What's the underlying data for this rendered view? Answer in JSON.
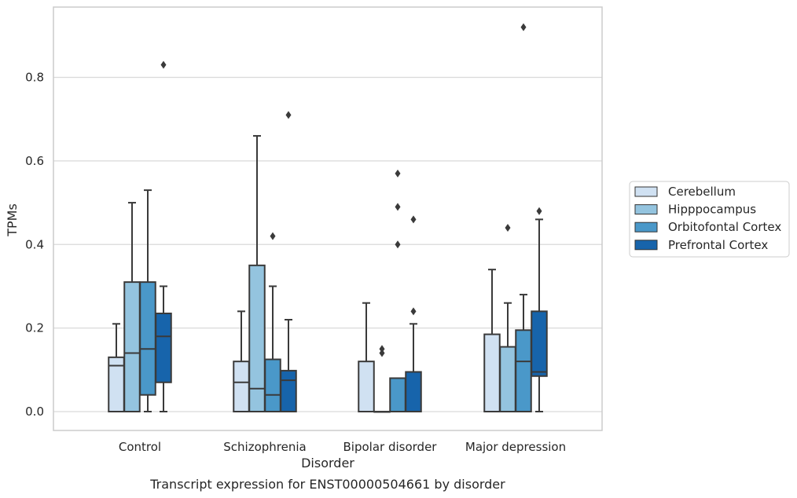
{
  "chart_data": {
    "type": "box",
    "xlabel": "Disorder",
    "ylabel": "TPMs",
    "caption": "Transcript expression for ENST00000504661 by disorder",
    "ylim": [
      -0.045,
      0.97
    ],
    "yticks": [
      "0.0",
      "0.2",
      "0.4",
      "0.6",
      "0.8"
    ],
    "grid": "horizontal",
    "legend_position": "right",
    "categories": [
      "Control",
      "Schizophrenia",
      "Bipolar disorder",
      "Major depression"
    ],
    "series": [
      {
        "name": "Cerebellum",
        "color": "#d0e1f2",
        "boxes": [
          {
            "lw": 0.0,
            "q1": 0.0,
            "median": 0.11,
            "q3": 0.13,
            "uw": 0.21,
            "outliers": []
          },
          {
            "lw": 0.0,
            "q1": 0.0,
            "median": 0.07,
            "q3": 0.12,
            "uw": 0.24,
            "outliers": []
          },
          {
            "lw": 0.0,
            "q1": 0.0,
            "median": 0.0,
            "q3": 0.12,
            "uw": 0.26,
            "outliers": []
          },
          {
            "lw": 0.0,
            "q1": 0.0,
            "median": 0.0,
            "q3": 0.185,
            "uw": 0.34,
            "outliers": []
          }
        ]
      },
      {
        "name": "Hipppocampus",
        "color": "#94c4df",
        "boxes": [
          {
            "lw": 0.0,
            "q1": 0.0,
            "median": 0.14,
            "q3": 0.31,
            "uw": 0.5,
            "outliers": []
          },
          {
            "lw": 0.0,
            "q1": 0.0,
            "median": 0.055,
            "q3": 0.35,
            "uw": 0.66,
            "outliers": []
          },
          {
            "lw": 0.0,
            "q1": 0.0,
            "median": 0.0,
            "q3": 0.0,
            "uw": 0.0,
            "outliers": [
              0.14,
              0.15
            ]
          },
          {
            "lw": 0.0,
            "q1": 0.0,
            "median": 0.0,
            "q3": 0.155,
            "uw": 0.26,
            "outliers": [
              0.44
            ]
          }
        ]
      },
      {
        "name": "Orbitofontal Cortex",
        "color": "#4a98c9",
        "boxes": [
          {
            "lw": 0.0,
            "q1": 0.04,
            "median": 0.15,
            "q3": 0.31,
            "uw": 0.53,
            "outliers": []
          },
          {
            "lw": 0.0,
            "q1": 0.0,
            "median": 0.04,
            "q3": 0.125,
            "uw": 0.3,
            "outliers": [
              0.42
            ]
          },
          {
            "lw": 0.0,
            "q1": 0.0,
            "median": 0.0,
            "q3": 0.08,
            "uw": 0.0,
            "outliers": [
              0.4,
              0.49,
              0.57
            ]
          },
          {
            "lw": 0.0,
            "q1": 0.0,
            "median": 0.12,
            "q3": 0.195,
            "uw": 0.28,
            "outliers": [
              0.92
            ]
          }
        ]
      },
      {
        "name": "Prefrontal Cortex",
        "color": "#1764ab",
        "boxes": [
          {
            "lw": 0.0,
            "q1": 0.07,
            "median": 0.18,
            "q3": 0.235,
            "uw": 0.3,
            "outliers": [
              0.83
            ]
          },
          {
            "lw": 0.0,
            "q1": 0.0,
            "median": 0.075,
            "q3": 0.098,
            "uw": 0.22,
            "outliers": [
              0.71
            ]
          },
          {
            "lw": 0.0,
            "q1": 0.0,
            "median": 0.0,
            "q3": 0.095,
            "uw": 0.21,
            "outliers": [
              0.24,
              0.46
            ]
          },
          {
            "lw": 0.0,
            "q1": 0.085,
            "median": 0.095,
            "q3": 0.24,
            "uw": 0.46,
            "outliers": [
              0.48
            ]
          }
        ]
      }
    ]
  }
}
